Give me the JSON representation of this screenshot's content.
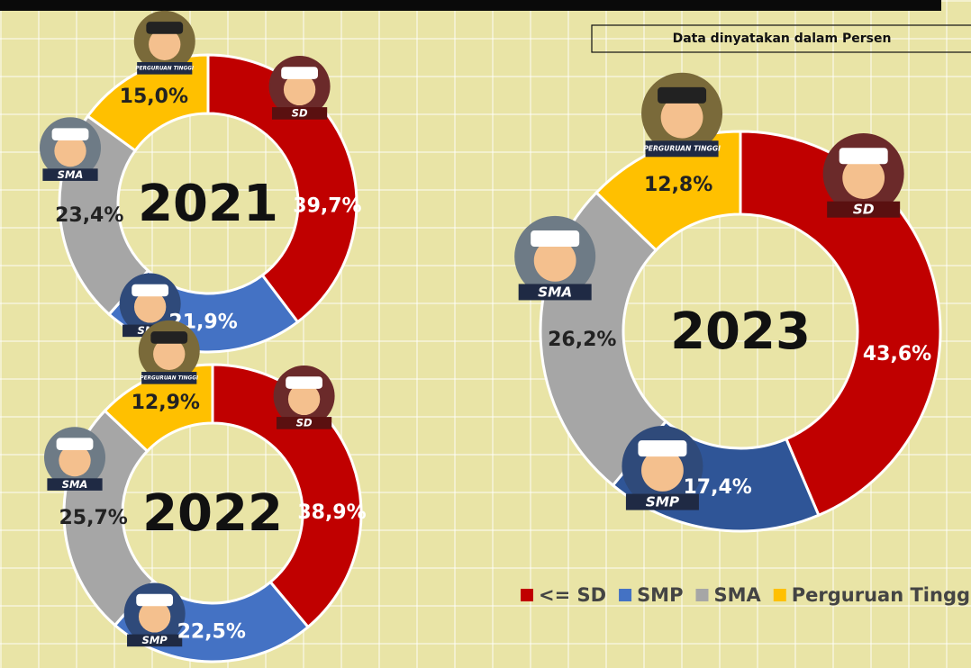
{
  "note": "Data dinyatakan dalam Persen",
  "categories": [
    "<= SD",
    "SMP",
    "SMA",
    "Perguruan Tinggi"
  ],
  "colors": [
    "#c00000",
    "#4472c4",
    "#a6a6a6",
    "#ffc000"
  ],
  "icon_labels": [
    "SD",
    "SMP",
    "SMA",
    "PERGURUAN TINGGI"
  ],
  "chart_data": [
    {
      "type": "donut",
      "title": "2021",
      "values": [
        39.7,
        21.9,
        23.4,
        15.0
      ],
      "value_labels": [
        "39,7%",
        "21,9%",
        "23,4%",
        "15,0%"
      ]
    },
    {
      "type": "donut",
      "title": "2022",
      "values": [
        38.9,
        22.5,
        25.7,
        12.9
      ],
      "value_labels": [
        "38,9%",
        "22,5%",
        "25,7%",
        "12,9%"
      ]
    },
    {
      "type": "donut",
      "title": "2023",
      "values": [
        43.6,
        17.4,
        26.2,
        12.8
      ],
      "value_labels": [
        "43,6%",
        "17,4%",
        "26,2%",
        "12,8%"
      ],
      "colors": [
        "#c00000",
        "#2f5597",
        "#a6a6a6",
        "#ffc000"
      ]
    }
  ]
}
